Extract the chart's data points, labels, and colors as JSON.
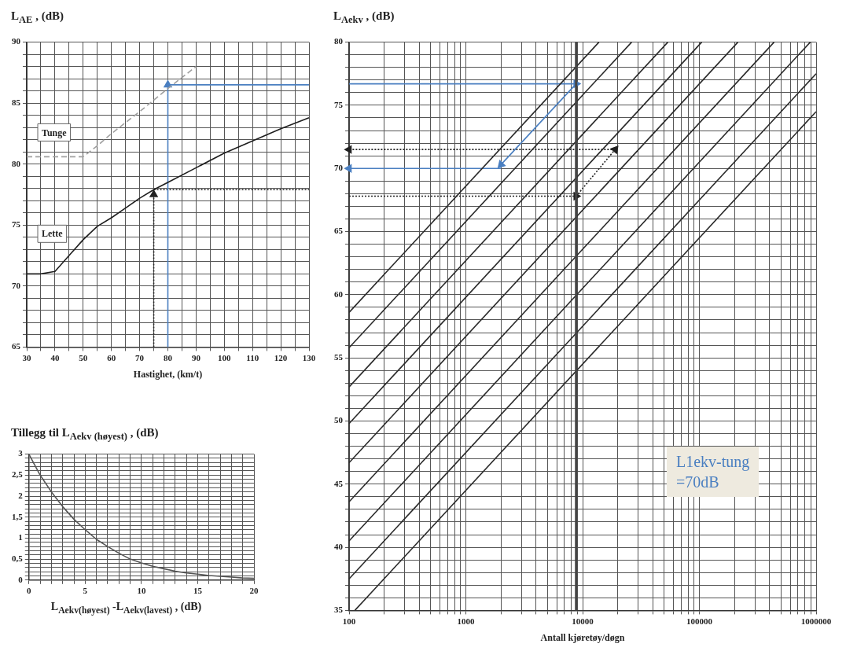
{
  "chart_data": [
    {
      "type": "line",
      "ylabel": "L$_{AE}$ , (dB)",
      "xlabel": "Hastighet, (km/t)",
      "xlim": [
        30,
        130
      ],
      "ylim": [
        65,
        90
      ],
      "grid": true,
      "legend": false,
      "xticks": [
        30,
        {
          "value": 35,
          "label": null
        },
        40,
        {
          "value": 45,
          "label": null
        },
        50,
        {
          "value": 55,
          "label": null
        },
        60,
        {
          "value": 65,
          "label": null
        },
        70,
        {
          "value": 75,
          "label": null
        },
        80,
        {
          "value": 85,
          "label": null
        },
        90,
        {
          "value": 95,
          "label": null
        },
        100,
        {
          "value": 105,
          "label": null
        },
        110,
        {
          "value": 115,
          "label": null
        },
        120,
        {
          "value": 125,
          "label": null
        },
        130
      ],
      "yticks": [
        65,
        {
          "value": 66,
          "label": null
        },
        {
          "value": 67,
          "label": null
        },
        {
          "value": 68,
          "label": null
        },
        {
          "value": 69,
          "label": null
        },
        70,
        {
          "value": 71,
          "label": null
        },
        {
          "value": 72,
          "label": null
        },
        {
          "value": 73,
          "label": null
        },
        {
          "value": 74,
          "label": null
        },
        75,
        {
          "value": 76,
          "label": null
        },
        {
          "value": 77,
          "label": null
        },
        {
          "value": 78,
          "label": null
        },
        {
          "value": 79,
          "label": null
        },
        80,
        {
          "value": 81,
          "label": null
        },
        {
          "value": 82,
          "label": null
        },
        {
          "value": 83,
          "label": null
        },
        {
          "value": 84,
          "label": null
        },
        85,
        {
          "value": 86,
          "label": null
        },
        {
          "value": 87,
          "label": null
        },
        {
          "value": 88,
          "label": null
        },
        {
          "value": 89,
          "label": null
        },
        90
      ],
      "series": [
        {
          "type": "line",
          "name": "Tunge",
          "color": "#a0a0a0",
          "line_style": "dashed",
          "marker": "none",
          "x": [
            30,
            50,
            55,
            60,
            70,
            80,
            90
          ],
          "values": [
            80.6,
            80.6,
            81.5,
            82.5,
            84.3,
            86.2,
            88
          ]
        },
        {
          "type": "line",
          "name": "Lette",
          "color": "#1e1e1e",
          "line_style": "solid",
          "marker": "none",
          "x": [
            30,
            35,
            40,
            45,
            50,
            55,
            60,
            65,
            70,
            75,
            80,
            90,
            100,
            110,
            120,
            130
          ],
          "values": [
            71,
            71,
            71.2,
            72.5,
            73.8,
            74.9,
            75.6,
            76.4,
            77.2,
            77.9,
            78.5,
            79.7,
            80.9,
            81.9,
            82.9,
            83.8
          ]
        },
        {
          "type": "line",
          "color": "#4a7fc1",
          "line_style": "solid",
          "marker": "triangle",
          "x": [
            80,
            80
          ],
          "values": [
            65,
            86.5
          ]
        },
        {
          "type": "line",
          "color": "#4a7fc1",
          "line_style": "solid",
          "marker": "none",
          "x": [
            80,
            130
          ],
          "values": [
            86.5,
            86.5
          ]
        },
        {
          "type": "line",
          "color": "#222222",
          "line_style": "dotted",
          "marker": "triangle",
          "x": [
            75,
            75
          ],
          "values": [
            65,
            77.5
          ]
        },
        {
          "type": "line",
          "color": "#222222",
          "line_style": "dotted",
          "marker": "none",
          "x": [
            75,
            130
          ],
          "values": [
            77.9,
            77.9
          ]
        }
      ]
    },
    {
      "type": "line",
      "ylabel": "Tillegg til L$_{Aekv (høyest)}$ , (dB)",
      "xlabel": "L$_{Aekv(høyest)}$ -L$_{Aekv(lavest)}$ , (dB)",
      "xlim": [
        0,
        20
      ],
      "ylim": [
        0,
        3
      ],
      "grid": true,
      "legend": false,
      "xticks": [
        0,
        {
          "value": 1,
          "label": null
        },
        {
          "value": 2,
          "label": null
        },
        {
          "value": 3,
          "label": null
        },
        {
          "value": 4,
          "label": null
        },
        5,
        {
          "value": 6,
          "label": null
        },
        {
          "value": 7,
          "label": null
        },
        {
          "value": 8,
          "label": null
        },
        {
          "value": 9,
          "label": null
        },
        10,
        {
          "value": 11,
          "label": null
        },
        {
          "value": 12,
          "label": null
        },
        {
          "value": 13,
          "label": null
        },
        {
          "value": 14,
          "label": null
        },
        15,
        {
          "value": 16,
          "label": null
        },
        {
          "value": 17,
          "label": null
        },
        {
          "value": 18,
          "label": null
        },
        {
          "value": 19,
          "label": null
        },
        20
      ],
      "yticks": [
        0,
        {
          "value": 0.1,
          "label": null
        },
        {
          "value": 0.2,
          "label": null
        },
        {
          "value": 0.3,
          "label": null
        },
        {
          "value": 0.4,
          "label": null
        },
        {
          "value": 0.5,
          "label": "0,5"
        },
        {
          "value": 0.6,
          "label": null
        },
        {
          "value": 0.7,
          "label": null
        },
        {
          "value": 0.8,
          "label": null
        },
        {
          "value": 0.9,
          "label": null
        },
        1,
        {
          "value": 1.1,
          "label": null
        },
        {
          "value": 1.2,
          "label": null
        },
        {
          "value": 1.3,
          "label": null
        },
        {
          "value": 1.4,
          "label": null
        },
        {
          "value": 1.5,
          "label": "1,5"
        },
        {
          "value": 1.6,
          "label": null
        },
        {
          "value": 1.7,
          "label": null
        },
        {
          "value": 1.8,
          "label": null
        },
        {
          "value": 1.9,
          "label": null
        },
        2,
        {
          "value": 2.1,
          "label": null
        },
        {
          "value": 2.2,
          "label": null
        },
        {
          "value": 2.3,
          "label": null
        },
        {
          "value": 2.4,
          "label": null
        },
        {
          "value": 2.5,
          "label": "2,5"
        },
        {
          "value": 2.6,
          "label": null
        },
        {
          "value": 2.7,
          "label": null
        },
        {
          "value": 2.8,
          "label": null
        },
        {
          "value": 2.9,
          "label": null
        },
        3
      ],
      "series": [
        {
          "type": "line",
          "color": "#555555",
          "line_style": "solid",
          "marker": "none",
          "x": [
            0,
            1,
            2,
            3,
            4,
            5,
            6,
            7,
            8,
            9,
            10,
            11,
            12,
            13,
            14,
            15,
            16,
            17,
            18,
            19,
            20
          ],
          "values": [
            3,
            2.5,
            2.1,
            1.75,
            1.45,
            1.2,
            0.97,
            0.8,
            0.64,
            0.5,
            0.41,
            0.33,
            0.27,
            0.21,
            0.17,
            0.14,
            0.11,
            0.09,
            0.07,
            0.05,
            0.04
          ]
        }
      ]
    },
    {
      "type": "line",
      "ylabel": "L$_{Aekv}$ , (dB)",
      "xlabel": "Antall kjøretøy/døgn",
      "log": "x",
      "xlim": [
        100,
        1000000
      ],
      "ylim": [
        35,
        80
      ],
      "grid": true,
      "legend": false,
      "annotations": [
        "L1ekv-tung\n=70dB"
      ],
      "ref_lines": [
        {
          "axis": "x",
          "value": 8800,
          "color": "#444444"
        }
      ],
      "xticks": [
        100,
        {
          "value": 200,
          "label": null
        },
        {
          "value": 300,
          "label": null
        },
        {
          "value": 400,
          "label": null
        },
        {
          "value": 500,
          "label": null
        },
        {
          "value": 600,
          "label": null
        },
        {
          "value": 700,
          "label": null
        },
        {
          "value": 800,
          "label": null
        },
        {
          "value": 900,
          "label": null
        },
        1000,
        {
          "value": 2000,
          "label": null
        },
        {
          "value": 3000,
          "label": null
        },
        {
          "value": 4000,
          "label": null
        },
        {
          "value": 5000,
          "label": null
        },
        {
          "value": 6000,
          "label": null
        },
        {
          "value": 7000,
          "label": null
        },
        {
          "value": 8000,
          "label": null
        },
        {
          "value": 9000,
          "label": null
        },
        10000,
        {
          "value": 20000,
          "label": null
        },
        {
          "value": 30000,
          "label": null
        },
        {
          "value": 40000,
          "label": null
        },
        {
          "value": 50000,
          "label": null
        },
        {
          "value": 60000,
          "label": null
        },
        {
          "value": 70000,
          "label": null
        },
        {
          "value": 80000,
          "label": null
        },
        {
          "value": 90000,
          "label": null
        },
        100000,
        {
          "value": 200000,
          "label": null
        },
        {
          "value": 300000,
          "label": null
        },
        {
          "value": 400000,
          "label": null
        },
        {
          "value": 500000,
          "label": null
        },
        {
          "value": 600000,
          "label": null
        },
        {
          "value": 700000,
          "label": null
        },
        {
          "value": 800000,
          "label": null
        },
        {
          "value": 900000,
          "label": null
        },
        1000000
      ],
      "yticks": [
        35,
        {
          "value": 36,
          "label": null
        },
        {
          "value": 37,
          "label": null
        },
        {
          "value": 38,
          "label": null
        },
        {
          "value": 39,
          "label": null
        },
        40,
        {
          "value": 41,
          "label": null
        },
        {
          "value": 42,
          "label": null
        },
        {
          "value": 43,
          "label": null
        },
        {
          "value": 44,
          "label": null
        },
        45,
        {
          "value": 46,
          "label": null
        },
        {
          "value": 47,
          "label": null
        },
        {
          "value": 48,
          "label": null
        },
        {
          "value": 49,
          "label": null
        },
        50,
        {
          "value": 51,
          "label": null
        },
        {
          "value": 52,
          "label": null
        },
        {
          "value": 53,
          "label": null
        },
        {
          "value": 54,
          "label": null
        },
        55,
        {
          "value": 56,
          "label": null
        },
        {
          "value": 57,
          "label": null
        },
        {
          "value": 58,
          "label": null
        },
        {
          "value": 59,
          "label": null
        },
        60,
        {
          "value": 61,
          "label": null
        },
        {
          "value": 62,
          "label": null
        },
        {
          "value": 63,
          "label": null
        },
        {
          "value": 64,
          "label": null
        },
        65,
        {
          "value": 66,
          "label": null
        },
        {
          "value": 67,
          "label": null
        },
        {
          "value": 68,
          "label": null
        },
        {
          "value": 69,
          "label": null
        },
        70,
        {
          "value": 71,
          "label": null
        },
        {
          "value": 72,
          "label": null
        },
        {
          "value": 73,
          "label": null
        },
        {
          "value": 74,
          "label": null
        },
        75,
        {
          "value": 76,
          "label": null
        },
        {
          "value": 77,
          "label": null
        },
        {
          "value": 78,
          "label": null
        },
        {
          "value": 79,
          "label": null
        },
        80
      ],
      "series": [
        {
          "type": "line",
          "color": "#2a2a2a",
          "line_style": "solid",
          "marker": "none",
          "x": [
            100,
            13800
          ],
          "values": [
            58.6,
            80
          ]
        },
        {
          "type": "line",
          "color": "#2a2a2a",
          "line_style": "solid",
          "marker": "none",
          "x": [
            100,
            26300
          ],
          "values": [
            55.8,
            80
          ]
        },
        {
          "type": "line",
          "color": "#2a2a2a",
          "line_style": "solid",
          "marker": "none",
          "x": [
            100,
            53700
          ],
          "values": [
            52.7,
            80
          ]
        },
        {
          "type": "line",
          "color": "#2a2a2a",
          "line_style": "solid",
          "marker": "none",
          "x": [
            100,
            104700
          ],
          "values": [
            49.8,
            80
          ]
        },
        {
          "type": "line",
          "color": "#2a2a2a",
          "line_style": "solid",
          "marker": "none",
          "x": [
            100,
            213800
          ],
          "values": [
            46.7,
            80
          ]
        },
        {
          "type": "line",
          "color": "#2a2a2a",
          "line_style": "solid",
          "marker": "none",
          "x": [
            100,
            436500
          ],
          "values": [
            43.6,
            80
          ]
        },
        {
          "type": "line",
          "color": "#2a2a2a",
          "line_style": "solid",
          "marker": "none",
          "x": [
            100,
            891000
          ],
          "values": [
            40.5,
            80
          ]
        },
        {
          "type": "line",
          "color": "#2a2a2a",
          "line_style": "solid",
          "marker": "none",
          "x": [
            100,
            1000000
          ],
          "values": [
            37.5,
            77.5
          ]
        },
        {
          "type": "line",
          "color": "#2a2a2a",
          "line_style": "solid",
          "marker": "none",
          "x": [
            112,
            1000000
          ],
          "values": [
            35,
            74.5
          ]
        },
        {
          "type": "line",
          "color": "#4a7fc1",
          "line_style": "solid",
          "marker": "triangle",
          "x": [
            100,
            8800
          ],
          "values": [
            76.7,
            76.7
          ]
        },
        {
          "type": "line",
          "color": "#4a7fc1",
          "line_style": "solid",
          "marker": "triangle",
          "x": [
            8800,
            2000
          ],
          "values": [
            76.7,
            70.3
          ]
        },
        {
          "type": "line",
          "color": "#4a7fc1",
          "line_style": "solid",
          "marker": "triangle",
          "x": [
            2000,
            100
          ],
          "values": [
            70,
            70
          ]
        },
        {
          "type": "line",
          "color": "#222222",
          "line_style": "dotted",
          "marker": "triangle",
          "x": [
            100,
            8800
          ],
          "values": [
            67.8,
            67.8
          ]
        },
        {
          "type": "line",
          "color": "#222222",
          "line_style": "dotted",
          "marker": "triangle",
          "x": [
            8800,
            19000
          ],
          "values": [
            67.8,
            71.5
          ]
        },
        {
          "type": "line",
          "color": "#222222",
          "line_style": "dotted",
          "marker": "triangle",
          "x": [
            19000,
            100
          ],
          "values": [
            71.5,
            71.5
          ]
        }
      ]
    }
  ]
}
